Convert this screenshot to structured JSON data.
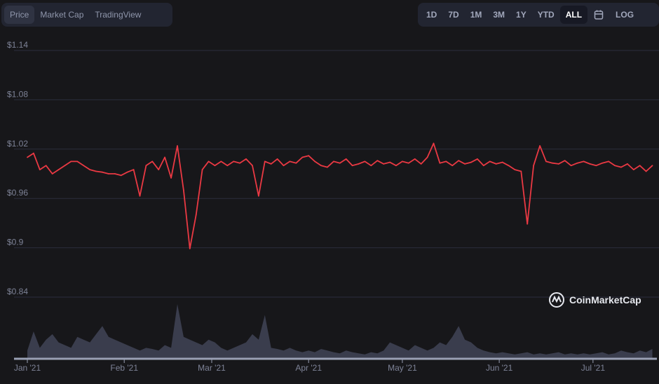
{
  "tabs": [
    {
      "label": "Price",
      "active": true
    },
    {
      "label": "Market Cap",
      "active": false
    },
    {
      "label": "TradingView",
      "active": false
    }
  ],
  "ranges": [
    {
      "label": "1D"
    },
    {
      "label": "7D"
    },
    {
      "label": "1M"
    },
    {
      "label": "3M"
    },
    {
      "label": "1Y"
    },
    {
      "label": "YTD"
    },
    {
      "label": "ALL",
      "active": true
    }
  ],
  "calendar_icon": "calendar-icon",
  "log_label": "LOG",
  "brand": "CoinMarketCap",
  "colors": {
    "line": "#ea3943",
    "volume": "#3a3d4d",
    "grid": "#2b2e3d",
    "background": "#17171a"
  },
  "chart_data": {
    "type": "line",
    "title": "",
    "ylim": [
      0.84,
      1.14
    ],
    "yticks": [
      {
        "v": 1.14,
        "label": "$1.14"
      },
      {
        "v": 1.08,
        "label": "$1.08"
      },
      {
        "v": 1.02,
        "label": "$1.02"
      },
      {
        "v": 0.96,
        "label": "$0.96"
      },
      {
        "v": 0.9,
        "label": "$0.9"
      },
      {
        "v": 0.84,
        "label": "$0.84"
      }
    ],
    "xticks": [
      {
        "date": "2021-01-01",
        "label": "Jan '21"
      },
      {
        "date": "2021-02-01",
        "label": "Feb '21"
      },
      {
        "date": "2021-03-01",
        "label": "Mar '21"
      },
      {
        "date": "2021-04-01",
        "label": "Apr '21"
      },
      {
        "date": "2021-05-01",
        "label": "May '21"
      },
      {
        "date": "2021-06-01",
        "label": "Jun '21"
      },
      {
        "date": "2021-07-01",
        "label": "Jul '21"
      }
    ],
    "grid": true,
    "xlim": [
      "2021-01-01",
      "2021-07-21"
    ],
    "price": {
      "dates": [
        "2021-01-01",
        "2021-01-03",
        "2021-01-05",
        "2021-01-07",
        "2021-01-09",
        "2021-01-11",
        "2021-01-13",
        "2021-01-15",
        "2021-01-17",
        "2021-01-19",
        "2021-01-21",
        "2021-01-23",
        "2021-01-25",
        "2021-01-27",
        "2021-01-29",
        "2021-01-31",
        "2021-02-02",
        "2021-02-04",
        "2021-02-06",
        "2021-02-08",
        "2021-02-10",
        "2021-02-12",
        "2021-02-14",
        "2021-02-16",
        "2021-02-18",
        "2021-02-20",
        "2021-02-22",
        "2021-02-24",
        "2021-02-26",
        "2021-02-28",
        "2021-03-02",
        "2021-03-04",
        "2021-03-06",
        "2021-03-08",
        "2021-03-10",
        "2021-03-12",
        "2021-03-14",
        "2021-03-16",
        "2021-03-18",
        "2021-03-20",
        "2021-03-22",
        "2021-03-24",
        "2021-03-26",
        "2021-03-28",
        "2021-03-30",
        "2021-04-01",
        "2021-04-03",
        "2021-04-05",
        "2021-04-07",
        "2021-04-09",
        "2021-04-11",
        "2021-04-13",
        "2021-04-15",
        "2021-04-17",
        "2021-04-19",
        "2021-04-21",
        "2021-04-23",
        "2021-04-25",
        "2021-04-27",
        "2021-04-29",
        "2021-05-01",
        "2021-05-03",
        "2021-05-05",
        "2021-05-07",
        "2021-05-09",
        "2021-05-11",
        "2021-05-13",
        "2021-05-15",
        "2021-05-17",
        "2021-05-19",
        "2021-05-21",
        "2021-05-23",
        "2021-05-25",
        "2021-05-27",
        "2021-05-29",
        "2021-05-31",
        "2021-06-02",
        "2021-06-04",
        "2021-06-06",
        "2021-06-08",
        "2021-06-10",
        "2021-06-12",
        "2021-06-14",
        "2021-06-16",
        "2021-06-18",
        "2021-06-20",
        "2021-06-22",
        "2021-06-24",
        "2021-06-26",
        "2021-06-28",
        "2021-06-30",
        "2021-07-02",
        "2021-07-04",
        "2021-07-06",
        "2021-07-08",
        "2021-07-10",
        "2021-07-12",
        "2021-07-14",
        "2021-07-16",
        "2021-07-18",
        "2021-07-20"
      ],
      "values": [
        1.01,
        1.015,
        0.995,
        1.0,
        0.99,
        0.995,
        1.0,
        1.005,
        1.005,
        1.0,
        0.995,
        0.993,
        0.992,
        0.99,
        0.99,
        0.988,
        0.992,
        0.995,
        0.963,
        1.0,
        1.005,
        0.995,
        1.01,
        0.985,
        1.024,
        0.97,
        0.899,
        0.94,
        0.995,
        1.005,
        1.0,
        1.005,
        1.0,
        1.005,
        1.003,
        1.008,
        1.0,
        0.963,
        1.005,
        1.002,
        1.008,
        1.0,
        1.005,
        1.003,
        1.01,
        1.012,
        1.005,
        1.0,
        0.998,
        1.005,
        1.003,
        1.008,
        1.0,
        1.002,
        1.005,
        1.0,
        1.006,
        1.002,
        1.004,
        1.0,
        1.005,
        1.003,
        1.008,
        1.002,
        1.01,
        1.027,
        1.003,
        1.005,
        1.0,
        1.006,
        1.002,
        1.004,
        1.008,
        1.0,
        1.005,
        1.002,
        1.004,
        1.0,
        0.995,
        0.993,
        0.929,
        1.0,
        1.024,
        1.005,
        1.003,
        1.002,
        1.006,
        1.0,
        1.003,
        1.005,
        1.002,
        1.0,
        1.003,
        1.005,
        1.0,
        0.998,
        1.002,
        0.995,
        1.0,
        0.993,
        1.0
      ]
    },
    "volume_relative": [
      15,
      50,
      20,
      35,
      45,
      30,
      25,
      20,
      40,
      35,
      30,
      45,
      60,
      40,
      35,
      30,
      25,
      20,
      15,
      20,
      18,
      15,
      25,
      20,
      100,
      40,
      35,
      30,
      25,
      35,
      30,
      20,
      15,
      20,
      25,
      30,
      45,
      35,
      80,
      20,
      18,
      15,
      20,
      15,
      12,
      15,
      12,
      18,
      15,
      12,
      10,
      15,
      12,
      10,
      8,
      12,
      10,
      15,
      30,
      25,
      20,
      15,
      25,
      20,
      15,
      20,
      30,
      25,
      40,
      60,
      35,
      30,
      20,
      15,
      12,
      10,
      12,
      10,
      8,
      10,
      12,
      8,
      10,
      8,
      10,
      12,
      8,
      10,
      8,
      10,
      8,
      10,
      12,
      8,
      10,
      15,
      12,
      10,
      15,
      12,
      18
    ]
  }
}
